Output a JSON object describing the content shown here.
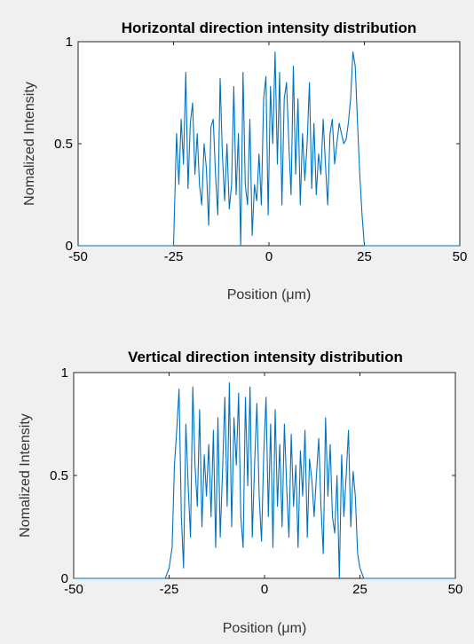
{
  "chart_data": [
    {
      "type": "line",
      "title": "Horizontal direction intensity distribution",
      "xlabel": "Position (μm)",
      "ylabel": "Nomalized Intensity",
      "xlim": [
        -50,
        50
      ],
      "ylim": [
        0,
        1
      ],
      "xticks": [
        "-50",
        "-25",
        "0",
        "25",
        "50"
      ],
      "yticks": [
        "0",
        "0.5",
        "1"
      ],
      "grid": false,
      "color": "#0072bd",
      "x": [
        -50,
        -25,
        -24.2,
        -23.6,
        -23,
        -22.4,
        -21.8,
        -21.2,
        -20.6,
        -20,
        -19.4,
        -18.8,
        -18.2,
        -17.6,
        -17,
        -16.4,
        -15.8,
        -15.2,
        -14.6,
        -14,
        -13.4,
        -12.8,
        -12.2,
        -11.6,
        -11,
        -10.4,
        -9.8,
        -9.2,
        -8.6,
        -8,
        -7.4,
        -6.8,
        -6.2,
        -5.6,
        -5,
        -4.4,
        -3.8,
        -3.2,
        -2.6,
        -2,
        -1.4,
        -0.8,
        -0.2,
        0.4,
        1,
        1.6,
        2.2,
        2.8,
        3.4,
        4,
        4.6,
        5.2,
        5.8,
        6.4,
        7,
        7.6,
        8.2,
        8.8,
        9.4,
        10,
        10.6,
        11.2,
        11.8,
        12.4,
        13,
        13.6,
        14.2,
        14.8,
        15.4,
        16,
        16.6,
        17.2,
        17.8,
        18.4,
        19,
        19.6,
        20.2,
        20.8,
        21.4,
        22,
        22.6,
        23.2,
        23.8,
        24.4,
        25,
        50
      ],
      "y": [
        0,
        0,
        0.55,
        0.3,
        0.62,
        0.4,
        0.85,
        0.28,
        0.6,
        0.7,
        0.35,
        0.55,
        0.3,
        0.2,
        0.5,
        0.38,
        0.1,
        0.58,
        0.62,
        0.35,
        0.15,
        0.82,
        0.45,
        0.22,
        0.5,
        0.18,
        0.3,
        0.78,
        0.25,
        0.55,
        0,
        0.85,
        0.3,
        0.2,
        0.62,
        0.05,
        0.3,
        0.22,
        0.45,
        0.2,
        0.72,
        0.83,
        0.15,
        0.78,
        0.5,
        0.95,
        0.4,
        0.85,
        0.2,
        0.72,
        0.8,
        0.5,
        0.25,
        0.88,
        0.35,
        0.72,
        0.2,
        0.55,
        0.32,
        0.5,
        0.8,
        0.28,
        0.6,
        0.25,
        0.45,
        0.35,
        0.62,
        0.4,
        0.2,
        0.55,
        0.62,
        0.4,
        0.5,
        0.6,
        0.55,
        0.5,
        0.52,
        0.6,
        0.72,
        0.95,
        0.88,
        0.6,
        0.35,
        0.15,
        0,
        0
      ]
    },
    {
      "type": "line",
      "title": "Vertical direction intensity distribution",
      "xlabel": "Position (μm)",
      "ylabel": "Nomalized Intensity",
      "xlim": [
        -50,
        50
      ],
      "ylim": [
        0,
        1
      ],
      "xticks": [
        "-50",
        "-25",
        "0",
        "25",
        "50"
      ],
      "yticks": [
        "0",
        "0.5",
        "1"
      ],
      "grid": false,
      "color": "#0072bd",
      "x": [
        -50,
        -26,
        -25,
        -24.2,
        -23.6,
        -23,
        -22.4,
        -21.8,
        -21.2,
        -20.6,
        -20,
        -19.4,
        -18.8,
        -18.2,
        -17.6,
        -17,
        -16.4,
        -15.8,
        -15.2,
        -14.6,
        -14,
        -13.4,
        -12.8,
        -12.2,
        -11.6,
        -11,
        -10.4,
        -9.8,
        -9.2,
        -8.6,
        -8,
        -7.4,
        -6.8,
        -6.2,
        -5.6,
        -5,
        -4.4,
        -3.8,
        -3.2,
        -2.6,
        -2,
        -1.4,
        -0.8,
        -0.2,
        0.4,
        1,
        1.6,
        2.2,
        2.8,
        3.4,
        4,
        4.6,
        5.2,
        5.8,
        6.4,
        7,
        7.6,
        8.2,
        8.8,
        9.4,
        10,
        10.6,
        11.2,
        11.8,
        12.4,
        13,
        13.6,
        14.2,
        14.8,
        15.4,
        16,
        16.6,
        17.2,
        17.8,
        18.4,
        19,
        19.6,
        20.2,
        20.8,
        21.4,
        22,
        22.6,
        23.2,
        23.8,
        24.4,
        25,
        26,
        50
      ],
      "y": [
        0,
        0,
        0.05,
        0.15,
        0.55,
        0.72,
        0.92,
        0.3,
        0.05,
        0.75,
        0.45,
        0.2,
        0.93,
        0.55,
        0.35,
        0.82,
        0.25,
        0.6,
        0.4,
        0.65,
        0.3,
        0.72,
        0.15,
        0.78,
        0.2,
        0.52,
        0.88,
        0.35,
        0.95,
        0.25,
        0.78,
        0.55,
        0.9,
        0.3,
        0.15,
        0.88,
        0.45,
        0.93,
        0.2,
        0.55,
        0.85,
        0.4,
        0.18,
        0.6,
        0.88,
        0.3,
        0.75,
        0.15,
        0.82,
        0.35,
        0.65,
        0.25,
        0.75,
        0.45,
        0.2,
        0.7,
        0.35,
        0.55,
        0.15,
        0.62,
        0.4,
        0.72,
        0.2,
        0.58,
        0.48,
        0.3,
        0.5,
        0.68,
        0.35,
        0.12,
        0.78,
        0.4,
        0.65,
        0.3,
        0.22,
        0.5,
        0,
        0.6,
        0.3,
        0.5,
        0.72,
        0.25,
        0.52,
        0.4,
        0.12,
        0.05,
        0,
        0
      ]
    }
  ]
}
